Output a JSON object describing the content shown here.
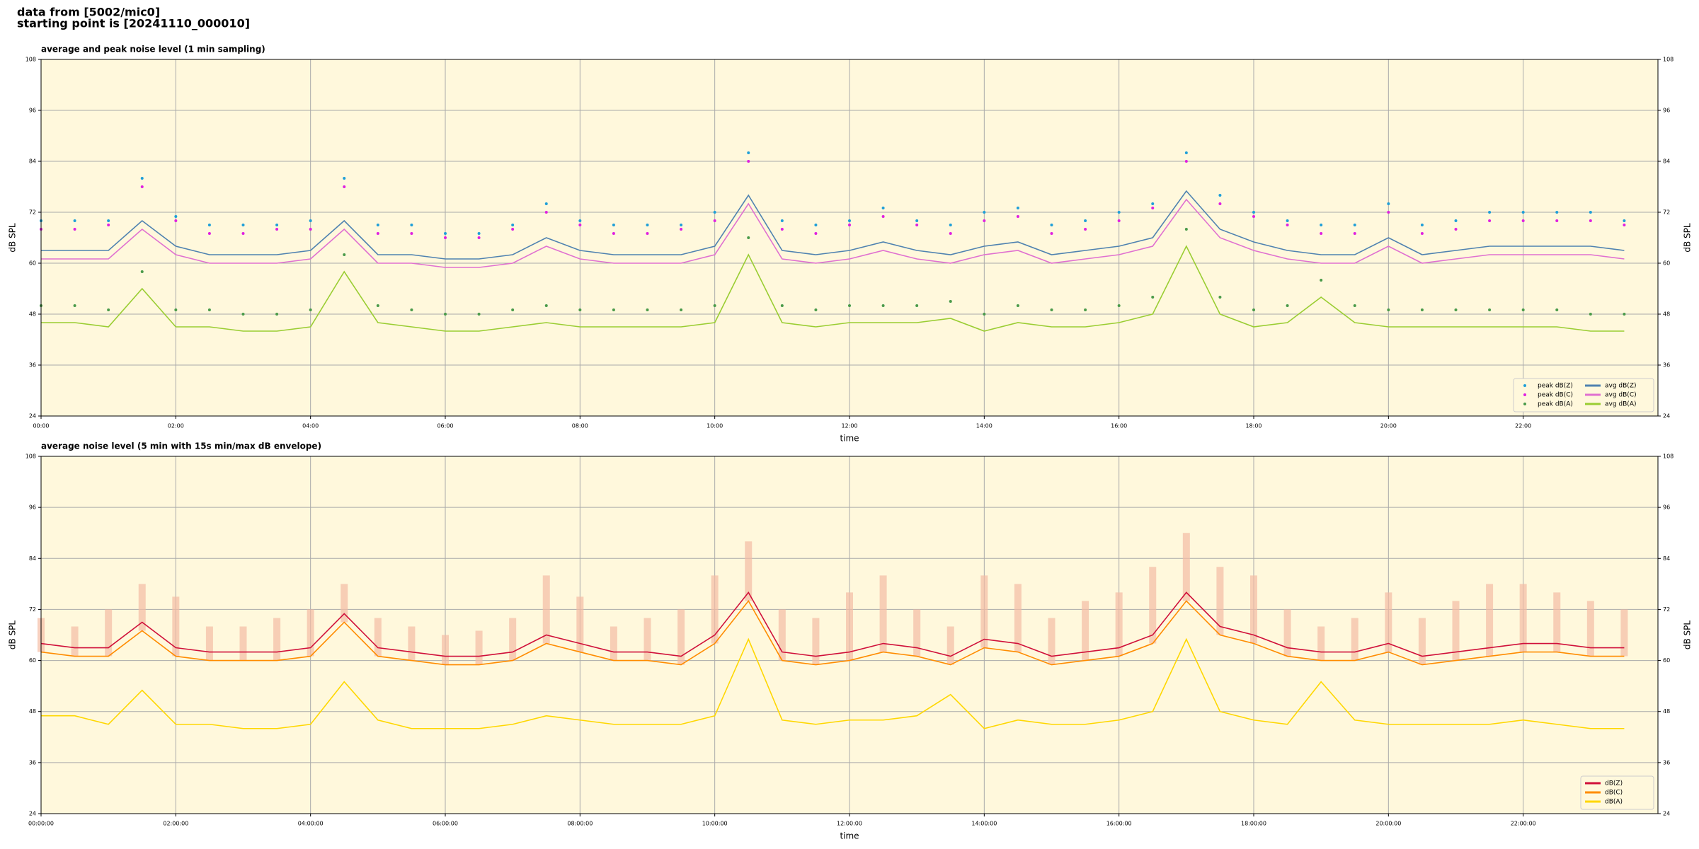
{
  "header": [
    "data from [5002/mic0]",
    "starting point is [20241110_000010]"
  ],
  "chart_data": [
    {
      "type": "line",
      "title": "average and peak noise level (1 min sampling)",
      "x_label": "time",
      "y_label": "dB SPL",
      "xlim": [
        0,
        24
      ],
      "ylim": [
        24,
        108
      ],
      "grid": true,
      "background": "#fff8dc",
      "legend": "lower right",
      "legend_columns": 2,
      "yticks": [
        24,
        36,
        48,
        60,
        72,
        84,
        96,
        108
      ],
      "xticks": [
        {
          "value": 0,
          "label": "00:00"
        },
        {
          "value": 2,
          "label": "02:00"
        },
        {
          "value": 4,
          "label": "04:00"
        },
        {
          "value": 6,
          "label": "06:00"
        },
        {
          "value": 8,
          "label": "08:00"
        },
        {
          "value": 10,
          "label": "10:00"
        },
        {
          "value": 12,
          "label": "12:00"
        },
        {
          "value": 14,
          "label": "14:00"
        },
        {
          "value": 16,
          "label": "16:00"
        },
        {
          "value": 18,
          "label": "18:00"
        },
        {
          "value": 20,
          "label": "20:00"
        },
        {
          "value": 22,
          "label": "22:00"
        }
      ],
      "x": [
        0,
        0.5,
        1,
        1.5,
        2,
        2.5,
        3,
        3.5,
        4,
        4.5,
        5,
        5.5,
        6,
        6.5,
        7,
        7.5,
        8,
        8.5,
        9,
        9.5,
        10,
        10.5,
        11,
        11.5,
        12,
        12.5,
        13,
        13.5,
        14,
        14.5,
        15,
        15.5,
        16,
        16.5,
        17,
        17.5,
        18,
        18.5,
        19,
        19.5,
        20,
        20.5,
        21,
        21.5,
        22,
        22.5,
        23,
        23.5
      ],
      "series": [
        {
          "name": "peak dB(Z)",
          "kind": "scatter",
          "color": "#1f9fd8",
          "values": [
            70,
            70,
            70,
            80,
            71,
            69,
            69,
            69,
            70,
            80,
            69,
            69,
            67,
            67,
            69,
            74,
            70,
            69,
            69,
            69,
            72,
            86,
            70,
            69,
            70,
            73,
            70,
            69,
            72,
            73,
            69,
            70,
            72,
            74,
            86,
            76,
            72,
            70,
            69,
            69,
            74,
            69,
            70,
            72,
            72,
            72,
            72,
            70
          ]
        },
        {
          "name": "peak dB(C)",
          "kind": "scatter",
          "color": "#e020e0",
          "values": [
            68,
            68,
            69,
            78,
            70,
            67,
            67,
            68,
            68,
            78,
            67,
            67,
            66,
            66,
            68,
            72,
            69,
            67,
            67,
            68,
            70,
            84,
            68,
            67,
            69,
            71,
            69,
            67,
            70,
            71,
            67,
            68,
            70,
            73,
            84,
            74,
            71,
            69,
            67,
            67,
            72,
            67,
            68,
            70,
            70,
            70,
            70,
            69
          ]
        },
        {
          "name": "peak dB(A)",
          "kind": "scatter",
          "color": "#4a9a4a",
          "values": [
            50,
            50,
            49,
            58,
            49,
            49,
            48,
            48,
            49,
            62,
            50,
            49,
            48,
            48,
            49,
            50,
            49,
            49,
            49,
            49,
            50,
            66,
            50,
            49,
            50,
            50,
            50,
            51,
            48,
            50,
            49,
            49,
            50,
            52,
            68,
            52,
            49,
            50,
            56,
            50,
            49,
            49,
            49,
            49,
            49,
            49,
            48,
            48
          ]
        },
        {
          "name": "avg dB(Z)",
          "kind": "line",
          "color": "#4f82b0",
          "values": [
            63,
            63,
            63,
            70,
            64,
            62,
            62,
            62,
            63,
            70,
            62,
            62,
            61,
            61,
            62,
            66,
            63,
            62,
            62,
            62,
            64,
            76,
            63,
            62,
            63,
            65,
            63,
            62,
            64,
            65,
            62,
            63,
            64,
            66,
            77,
            68,
            65,
            63,
            62,
            62,
            66,
            62,
            63,
            64,
            64,
            64,
            64,
            63
          ]
        },
        {
          "name": "avg dB(C)",
          "kind": "line",
          "color": "#e070d0",
          "values": [
            61,
            61,
            61,
            68,
            62,
            60,
            60,
            60,
            61,
            68,
            60,
            60,
            59,
            59,
            60,
            64,
            61,
            60,
            60,
            60,
            62,
            74,
            61,
            60,
            61,
            63,
            61,
            60,
            62,
            63,
            60,
            61,
            62,
            64,
            75,
            66,
            63,
            61,
            60,
            60,
            64,
            60,
            61,
            62,
            62,
            62,
            62,
            61
          ]
        },
        {
          "name": "avg dB(A)",
          "kind": "line",
          "color": "#9acd32",
          "values": [
            46,
            46,
            45,
            54,
            45,
            45,
            44,
            44,
            45,
            58,
            46,
            45,
            44,
            44,
            45,
            46,
            45,
            45,
            45,
            45,
            46,
            62,
            46,
            45,
            46,
            46,
            46,
            47,
            44,
            46,
            45,
            45,
            46,
            48,
            64,
            48,
            45,
            46,
            52,
            46,
            45,
            45,
            45,
            45,
            45,
            45,
            44,
            44
          ]
        }
      ]
    },
    {
      "type": "line",
      "title": "average noise level (5 min with 15s min/max dB envelope)",
      "x_label": "time",
      "y_label": "dB SPL",
      "xlim": [
        0,
        24
      ],
      "ylim": [
        24,
        108
      ],
      "grid": true,
      "background": "#fff8dc",
      "legend": "lower right",
      "legend_columns": 1,
      "yticks": [
        24,
        36,
        48,
        60,
        72,
        84,
        96,
        108
      ],
      "xticks": [
        {
          "value": 0,
          "label": "00:00:00"
        },
        {
          "value": 2,
          "label": "02:00:00"
        },
        {
          "value": 4,
          "label": "04:00:00"
        },
        {
          "value": 6,
          "label": "06:00:00"
        },
        {
          "value": 8,
          "label": "08:00:00"
        },
        {
          "value": 10,
          "label": "10:00:00"
        },
        {
          "value": 12,
          "label": "12:00:00"
        },
        {
          "value": 14,
          "label": "14:00:00"
        },
        {
          "value": 16,
          "label": "16:00:00"
        },
        {
          "value": 18,
          "label": "18:00:00"
        },
        {
          "value": 20,
          "label": "20:00:00"
        },
        {
          "value": 22,
          "label": "22:00:00"
        }
      ],
      "x": [
        0,
        0.5,
        1,
        1.5,
        2,
        2.5,
        3,
        3.5,
        4,
        4.5,
        5,
        5.5,
        6,
        6.5,
        7,
        7.5,
        8,
        8.5,
        9,
        9.5,
        10,
        10.5,
        11,
        11.5,
        12,
        12.5,
        13,
        13.5,
        14,
        14.5,
        15,
        15.5,
        16,
        16.5,
        17,
        17.5,
        18,
        18.5,
        19,
        19.5,
        20,
        20.5,
        21,
        21.5,
        22,
        22.5,
        23,
        23.5
      ],
      "envelope": {
        "color": "#f4bca4",
        "max": [
          70,
          68,
          72,
          78,
          75,
          68,
          68,
          70,
          72,
          78,
          70,
          68,
          66,
          67,
          70,
          80,
          75,
          68,
          70,
          72,
          80,
          88,
          72,
          70,
          76,
          80,
          72,
          68,
          80,
          78,
          70,
          74,
          76,
          82,
          90,
          82,
          80,
          72,
          68,
          70,
          76,
          70,
          74,
          78,
          78,
          76,
          74,
          72
        ]
      },
      "series": [
        {
          "name": "dB(Z)",
          "kind": "line",
          "color": "#d0103a",
          "values": [
            64,
            63,
            63,
            69,
            63,
            62,
            62,
            62,
            63,
            71,
            63,
            62,
            61,
            61,
            62,
            66,
            64,
            62,
            62,
            61,
            66,
            76,
            62,
            61,
            62,
            64,
            63,
            61,
            65,
            64,
            61,
            62,
            63,
            66,
            76,
            68,
            66,
            63,
            62,
            62,
            64,
            61,
            62,
            63,
            64,
            64,
            63,
            63
          ]
        },
        {
          "name": "dB(C)",
          "kind": "line",
          "color": "#ff8c00",
          "values": [
            62,
            61,
            61,
            67,
            61,
            60,
            60,
            60,
            61,
            69,
            61,
            60,
            59,
            59,
            60,
            64,
            62,
            60,
            60,
            59,
            64,
            74,
            60,
            59,
            60,
            62,
            61,
            59,
            63,
            62,
            59,
            60,
            61,
            64,
            74,
            66,
            64,
            61,
            60,
            60,
            62,
            59,
            60,
            61,
            62,
            62,
            61,
            61
          ]
        },
        {
          "name": "dB(A)",
          "kind": "line",
          "color": "#ffd700",
          "values": [
            47,
            47,
            45,
            53,
            45,
            45,
            44,
            44,
            45,
            55,
            46,
            44,
            44,
            44,
            45,
            47,
            46,
            45,
            45,
            45,
            47,
            65,
            46,
            45,
            46,
            46,
            47,
            52,
            44,
            46,
            45,
            45,
            46,
            48,
            65,
            48,
            46,
            45,
            55,
            46,
            45,
            45,
            45,
            45,
            46,
            45,
            44,
            44
          ]
        }
      ]
    }
  ]
}
